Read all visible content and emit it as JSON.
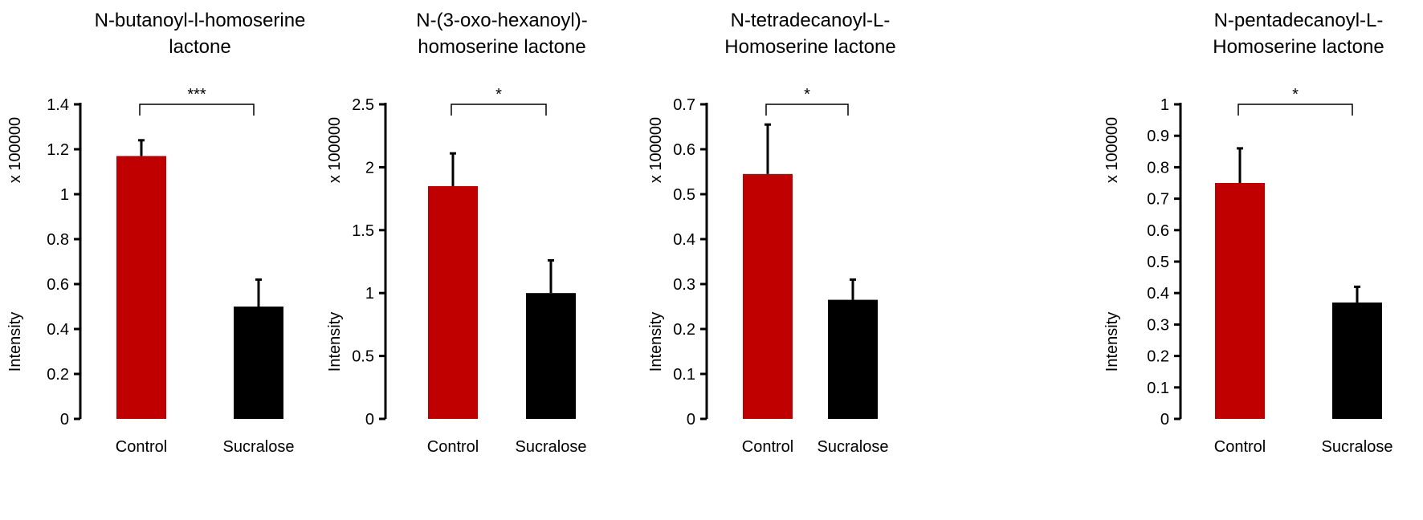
{
  "chart_data": [
    {
      "type": "bar",
      "title": [
        "N-butanoyl-l-homoserine",
        "lactone"
      ],
      "ylabel": "Intensity",
      "yscale_label": "x 100000",
      "categories": [
        "Control",
        "Sucralose"
      ],
      "values": [
        1.17,
        0.5
      ],
      "errors": [
        0.07,
        0.12
      ],
      "colors": [
        "#c00000",
        "#000000"
      ],
      "ylim": [
        0,
        1.4
      ],
      "yticks": [
        0,
        0.2,
        0.4,
        0.6,
        0.8,
        1,
        1.2,
        1.4
      ],
      "significance": "***"
    },
    {
      "type": "bar",
      "title": [
        "N-(3-oxo-hexanoyl)-",
        "homoserine lactone"
      ],
      "ylabel": "Intensity",
      "yscale_label": "x 100000",
      "categories": [
        "Control",
        "Sucralose"
      ],
      "values": [
        1.85,
        1.0
      ],
      "errors": [
        0.26,
        0.26
      ],
      "colors": [
        "#c00000",
        "#000000"
      ],
      "ylim": [
        0,
        2.5
      ],
      "yticks": [
        0,
        0.5,
        1,
        1.5,
        2,
        2.5
      ],
      "significance": "*"
    },
    {
      "type": "bar",
      "title": [
        "N-tetradecanoyl-L-",
        "Homoserine lactone"
      ],
      "ylabel": "Intensity",
      "yscale_label": "x 100000",
      "categories": [
        "Control",
        "Sucralose"
      ],
      "values": [
        0.545,
        0.265
      ],
      "errors": [
        0.11,
        0.045
      ],
      "colors": [
        "#c00000",
        "#000000"
      ],
      "ylim": [
        0,
        0.7
      ],
      "yticks": [
        0,
        0.1,
        0.2,
        0.3,
        0.4,
        0.5,
        0.6,
        0.7
      ],
      "significance": "*"
    },
    {
      "type": "bar",
      "title": [
        "N-pentadecanoyl-L-",
        "Homoserine lactone"
      ],
      "ylabel": "Intensity",
      "yscale_label": "x 100000",
      "categories": [
        "Control",
        "Sucralose"
      ],
      "values": [
        0.75,
        0.37
      ],
      "errors": [
        0.11,
        0.05
      ],
      "colors": [
        "#c00000",
        "#000000"
      ],
      "ylim": [
        0,
        1
      ],
      "yticks": [
        0,
        0.1,
        0.2,
        0.3,
        0.4,
        0.5,
        0.6,
        0.7,
        0.8,
        0.9,
        1
      ],
      "significance": "*"
    }
  ]
}
